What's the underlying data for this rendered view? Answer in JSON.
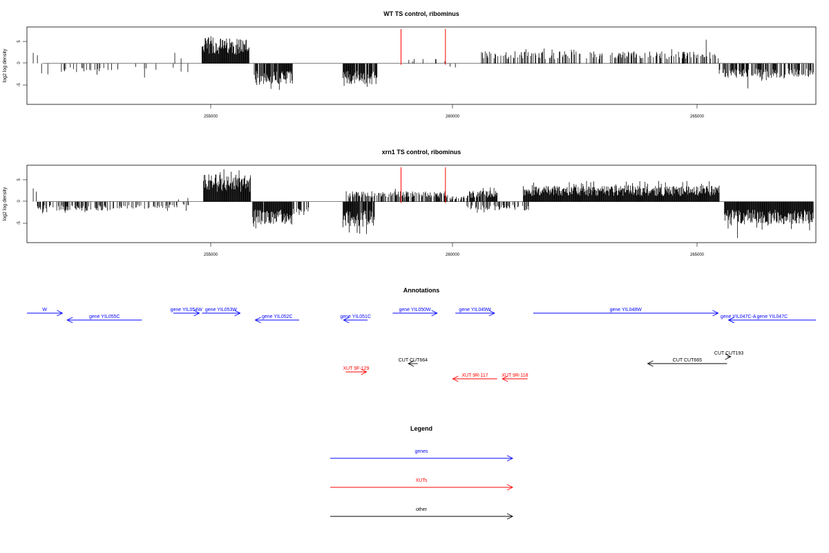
{
  "chart_data": [
    {
      "type": "bar",
      "title": "WT TS control, ribominus",
      "ylabel": "log2 log density",
      "xlim": [
        251700,
        266800
      ],
      "ylim": [
        -9,
        8
      ],
      "xticks": [
        "255000",
        "260000",
        "265000"
      ],
      "yticks": [
        "5",
        "0",
        "-5"
      ],
      "markers": [
        258860,
        259710
      ],
      "grid": false,
      "segments": [
        {
          "from": 252300,
          "to": 253400,
          "amp": 2.0,
          "density": 0.25,
          "sign": -1
        },
        {
          "from": 253400,
          "to": 254700,
          "amp": 1.8,
          "density": 0.06,
          "sign": -1
        },
        {
          "from": 255050,
          "to": 255950,
          "amp": 5.6,
          "density": 1.0,
          "sign": 1
        },
        {
          "from": 256050,
          "to": 256780,
          "amp": 4.8,
          "density": 0.9,
          "sign": -1
        },
        {
          "from": 257750,
          "to": 258400,
          "amp": 4.6,
          "density": 0.9,
          "sign": -1
        },
        {
          "from": 259000,
          "to": 259700,
          "amp": 1.0,
          "density": 0.1,
          "sign": 1
        },
        {
          "from": 260380,
          "to": 264950,
          "amp": 2.6,
          "density": 0.35,
          "sign": 1
        },
        {
          "from": 264950,
          "to": 266750,
          "amp": 3.2,
          "density": 0.6,
          "sign": -1
        }
      ],
      "spikes": [
        {
          "x": 251820,
          "y": 2.3
        },
        {
          "x": 251900,
          "y": 1.8
        },
        {
          "x": 251980,
          "y": -2.2
        },
        {
          "x": 252100,
          "y": -2.4
        },
        {
          "x": 253950,
          "y": -3.1
        },
        {
          "x": 254530,
          "y": 2.3
        },
        {
          "x": 254650,
          "y": 1.1
        },
        {
          "x": 254780,
          "y": -1.9
        },
        {
          "x": 259800,
          "y": -0.7
        },
        {
          "x": 259900,
          "y": -0.9
        },
        {
          "x": 264700,
          "y": 5.2
        },
        {
          "x": 265500,
          "y": -5.5
        }
      ]
    },
    {
      "type": "bar",
      "title": "xrn1 TS control, ribominus",
      "ylabel": "log2 log density",
      "xlim": [
        251700,
        266800
      ],
      "ylim": [
        -9,
        8
      ],
      "xticks": [
        "255000",
        "260000",
        "265000"
      ],
      "yticks": [
        "5",
        "0",
        "-5"
      ],
      "markers": [
        258860,
        259710
      ],
      "grid": false,
      "segments": [
        {
          "from": 251900,
          "to": 253300,
          "amp": 2.0,
          "density": 0.5,
          "sign": -1
        },
        {
          "from": 253300,
          "to": 254800,
          "amp": 1.6,
          "density": 0.3,
          "sign": -1
        },
        {
          "from": 255080,
          "to": 255980,
          "amp": 6.0,
          "density": 1.0,
          "sign": 1
        },
        {
          "from": 256020,
          "to": 256780,
          "amp": 5.0,
          "density": 0.95,
          "sign": -1
        },
        {
          "from": 256800,
          "to": 257100,
          "amp": 3.0,
          "density": 0.5,
          "sign": -1
        },
        {
          "from": 257750,
          "to": 258350,
          "amp": 5.5,
          "density": 0.95,
          "sign": -1
        },
        {
          "from": 257800,
          "to": 259700,
          "amp": 2.3,
          "density": 0.55,
          "sign": 1
        },
        {
          "from": 259700,
          "to": 260100,
          "amp": 1.2,
          "density": 0.6,
          "sign": 1
        },
        {
          "from": 260100,
          "to": 260700,
          "amp": 2.4,
          "density": 0.75,
          "sign": 1
        },
        {
          "from": 260100,
          "to": 261300,
          "amp": 2.0,
          "density": 0.35,
          "sign": -1
        },
        {
          "from": 261200,
          "to": 264950,
          "amp": 3.5,
          "density": 1.0,
          "sign": 1
        },
        {
          "from": 265050,
          "to": 266750,
          "amp": 5.0,
          "density": 1.0,
          "sign": -1
        }
      ],
      "spikes": [
        {
          "x": 251820,
          "y": 2.9
        },
        {
          "x": 251880,
          "y": 2.2
        },
        {
          "x": 254600,
          "y": 0.5
        },
        {
          "x": 254780,
          "y": 0.8
        },
        {
          "x": 265300,
          "y": -8.0
        }
      ]
    }
  ],
  "annotations": {
    "title": "Annotations",
    "gene_color": "#0000ff",
    "xut_color": "#ff0000",
    "other_color": "#000000",
    "items": [
      {
        "label": "W",
        "from": 251700,
        "to": 252380,
        "row": 0,
        "kind": "gene"
      },
      {
        "label": "gene YIL055C",
        "from": 253900,
        "to": 252470,
        "row": 1,
        "kind": "gene"
      },
      {
        "label": "gene YIL054W",
        "from": 254500,
        "to": 255000,
        "row": 0,
        "kind": "gene"
      },
      {
        "label": "gene YIL053W",
        "from": 255050,
        "to": 255780,
        "row": 0,
        "kind": "gene"
      },
      {
        "label": "gene YIL052C",
        "from": 256910,
        "to": 256070,
        "row": 1,
        "kind": "gene"
      },
      {
        "label": "gene YIL051C",
        "from": 258220,
        "to": 257760,
        "row": 1,
        "kind": "gene"
      },
      {
        "label": "gene YIL050W",
        "from": 258700,
        "to": 259550,
        "row": 0,
        "kind": "gene"
      },
      {
        "label": "gene YIL049W",
        "from": 259900,
        "to": 260650,
        "row": 0,
        "kind": "gene"
      },
      {
        "label": "gene YIL048W",
        "from": 261390,
        "to": 264930,
        "row": 0,
        "kind": "gene"
      },
      {
        "label": "gene YIL047C-A",
        "from": 265500,
        "to": 265130,
        "row": 1,
        "kind": "gene"
      },
      {
        "label": "gene YIL047C",
        "from": 266800,
        "to": 265130,
        "row": 1,
        "kind": "gene"
      },
      {
        "label": "CUT CUT193",
        "from": 265100,
        "to": 265170,
        "row": 4,
        "kind": "other"
      },
      {
        "label": "CUT CUT664",
        "from": 259180,
        "to": 259000,
        "row": 5,
        "kind": "other"
      },
      {
        "label": "CUT CUT665",
        "from": 265100,
        "to": 263580,
        "row": 5,
        "kind": "other"
      },
      {
        "label": "XUT 9F-129",
        "from": 257800,
        "to": 258200,
        "row": 6,
        "kind": "xut"
      },
      {
        "label": "XUT 9R-117",
        "from": 260700,
        "to": 259850,
        "row": 7,
        "kind": "xut"
      },
      {
        "label": "XUT 9R-118",
        "from": 261280,
        "to": 260800,
        "row": 7,
        "kind": "xut"
      }
    ]
  },
  "legend": {
    "title": "Legend",
    "entries": [
      {
        "label": "genes",
        "color": "#0000ff"
      },
      {
        "label": "XUTs",
        "color": "#ff0000"
      },
      {
        "label": "other",
        "color": "#000000"
      }
    ]
  }
}
